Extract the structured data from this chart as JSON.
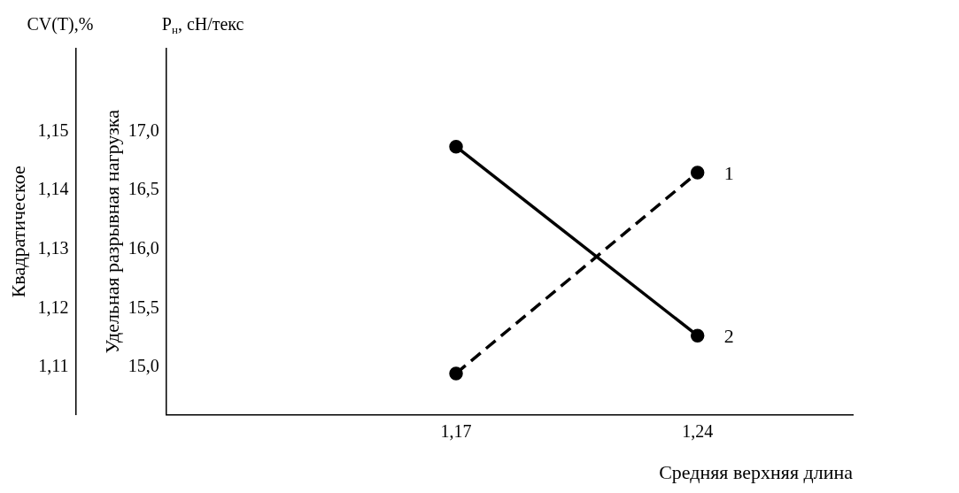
{
  "chart_data": {
    "type": "line",
    "xlabel": "Средняя верхняя длина",
    "ylabel": "Квадратическое",
    "y2label": "Удельная разрывная нагрузка",
    "annotations": [
      "CV(T),%",
      "P$_{н}$, сН/текс"
    ],
    "x": [
      1.17,
      1.24
    ],
    "xlim": [
      1.086,
      1.285
    ],
    "xticks": [
      {
        "value": 1.17,
        "label": "1,17"
      },
      {
        "value": 1.24,
        "label": "1,24"
      }
    ],
    "ylim": [
      1.102,
      1.164
    ],
    "yticks": [
      {
        "value": 1.11,
        "label": "1,11"
      },
      {
        "value": 1.12,
        "label": "1,12"
      },
      {
        "value": 1.13,
        "label": "1,13"
      },
      {
        "value": 1.14,
        "label": "1,14"
      },
      {
        "value": 1.15,
        "label": "1,15"
      }
    ],
    "y2lim": [
      14.6,
      17.7
    ],
    "y2ticks": [
      {
        "value": 15,
        "label": "15,0"
      },
      {
        "value": 15.5,
        "label": "15,5"
      },
      {
        "value": 16,
        "label": "16,0"
      },
      {
        "value": 16.5,
        "label": "16,5"
      },
      {
        "value": 17,
        "label": "17,0"
      }
    ],
    "series": [
      {
        "name": "1",
        "color": "#000000",
        "line_style": "dashed",
        "axis": "y",
        "values": [
          1.109,
          1.143
        ]
      },
      {
        "name": "2",
        "color": "#000000",
        "line_style": "solid",
        "axis": "y2",
        "values": [
          16.87,
          15.27
        ]
      }
    ],
    "marker": "circle",
    "grid": false,
    "legend": false
  }
}
